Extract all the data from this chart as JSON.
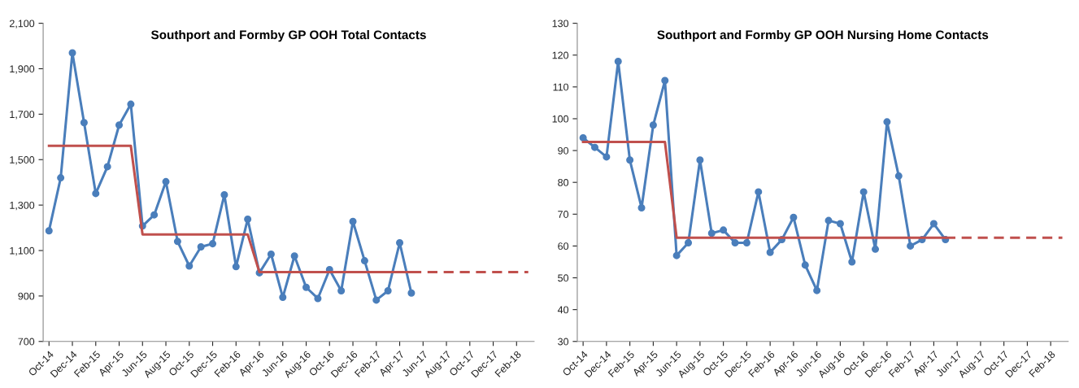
{
  "chart_data": [
    {
      "type": "line",
      "title": "Southport and Formby GP OOH Total Contacts",
      "categories": [
        "Oct-14",
        null,
        "Dec-14",
        null,
        "Feb-15",
        null,
        "Apr-15",
        null,
        "Jun-15",
        null,
        "Aug-15",
        null,
        "Oct-15",
        null,
        "Dec-15",
        null,
        "Feb-16",
        null,
        "Apr-16",
        null,
        "Jun-16",
        null,
        "Aug-16",
        null,
        "Oct-16",
        null,
        "Dec-16",
        null,
        "Feb-17",
        null,
        "Apr-17",
        null,
        "Jun-17",
        null,
        "Aug-17",
        null,
        "Oct-17",
        null,
        "Dec-17",
        null,
        "Feb-18",
        null
      ],
      "series": [
        {
          "color": "#4a7ebb",
          "marker": "circle",
          "line_style": "solid",
          "values": [
            1187,
            1420,
            1970,
            1663,
            1351,
            1469,
            1652,
            1744,
            1208,
            1257,
            1403,
            1140,
            1032,
            1116,
            1130,
            1345,
            1029,
            1238,
            1002,
            1084,
            894,
            1076,
            938,
            889,
            1016,
            923,
            1228,
            1055,
            882,
            923,
            1134,
            913,
            null,
            null,
            null,
            null,
            null,
            null,
            null,
            null,
            null,
            null
          ]
        },
        {
          "color": "#c0504d",
          "marker": "none",
          "line_style": "solid",
          "values": [
            1561,
            1561,
            1561,
            1561,
            1561,
            1561,
            1561,
            1561,
            1171,
            1171,
            1171,
            1171,
            1171,
            1171,
            1171,
            1171,
            1171,
            1171,
            1005,
            1005,
            1005,
            1005,
            1005,
            1005,
            1005,
            1005,
            1005,
            1005,
            1005,
            1005,
            1005,
            1005,
            null,
            null,
            null,
            null,
            null,
            null,
            null,
            null,
            null,
            null
          ]
        },
        {
          "color": "#c0504d",
          "marker": "none",
          "line_style": "dashed",
          "values": [
            null,
            null,
            null,
            null,
            null,
            null,
            null,
            null,
            null,
            null,
            null,
            null,
            null,
            null,
            null,
            null,
            null,
            null,
            null,
            null,
            null,
            null,
            null,
            null,
            null,
            null,
            null,
            null,
            null,
            null,
            null,
            1005,
            1005,
            1005,
            1005,
            1005,
            1005,
            1005,
            1005,
            1005,
            1005,
            1005
          ]
        }
      ],
      "ylim": [
        700,
        2100
      ],
      "yticks": [
        {
          "value": 700,
          "label": "700"
        },
        {
          "value": 900,
          "label": "900"
        },
        {
          "value": 1100,
          "label": "1,100"
        },
        {
          "value": 1300,
          "label": "1,300"
        },
        {
          "value": 1500,
          "label": "1,500"
        },
        {
          "value": 1700,
          "label": "1,700"
        },
        {
          "value": 1900,
          "label": "1,900"
        },
        {
          "value": 2100,
          "label": "2,100"
        }
      ],
      "grid": false,
      "legend": false
    },
    {
      "type": "line",
      "title": "Southport and Formby GP OOH Nursing Home Contacts",
      "categories": [
        "Oct-14",
        null,
        "Dec-14",
        null,
        "Feb-15",
        null,
        "Apr-15",
        null,
        "Jun-15",
        null,
        "Aug-15",
        null,
        "Oct-15",
        null,
        "Dec-15",
        null,
        "Feb-16",
        null,
        "Apr-16",
        null,
        "Jun-16",
        null,
        "Aug-16",
        null,
        "Oct-16",
        null,
        "Dec-16",
        null,
        "Feb-17",
        null,
        "Apr-17",
        null,
        "Jun-17",
        null,
        "Aug-17",
        null,
        "Oct-17",
        null,
        "Dec-17",
        null,
        "Feb-18",
        null
      ],
      "series": [
        {
          "color": "#4a7ebb",
          "marker": "circle",
          "line_style": "solid",
          "values": [
            94,
            91,
            88,
            118,
            87,
            72,
            98,
            112,
            57,
            61,
            87,
            64,
            65,
            61,
            61,
            77,
            58,
            62,
            69,
            54,
            46,
            68,
            67,
            55,
            77,
            59,
            99,
            82,
            60,
            62,
            67,
            62,
            null,
            null,
            null,
            null,
            null,
            null,
            null,
            null,
            null,
            null
          ]
        },
        {
          "color": "#c0504d",
          "marker": "none",
          "line_style": "solid",
          "values": [
            92.7,
            92.7,
            92.7,
            92.7,
            92.7,
            92.7,
            92.7,
            92.7,
            62.6,
            62.6,
            62.6,
            62.6,
            62.6,
            62.6,
            62.6,
            62.6,
            62.6,
            62.6,
            62.6,
            62.6,
            62.6,
            62.6,
            62.6,
            62.6,
            62.6,
            62.6,
            62.6,
            62.6,
            62.6,
            62.6,
            62.6,
            62.6,
            null,
            null,
            null,
            null,
            null,
            null,
            null,
            null,
            null,
            null
          ]
        },
        {
          "color": "#c0504d",
          "marker": "none",
          "line_style": "dashed",
          "values": [
            null,
            null,
            null,
            null,
            null,
            null,
            null,
            null,
            null,
            null,
            null,
            null,
            null,
            null,
            null,
            null,
            null,
            null,
            null,
            null,
            null,
            null,
            null,
            null,
            null,
            null,
            null,
            null,
            null,
            null,
            null,
            62.6,
            62.6,
            62.6,
            62.6,
            62.6,
            62.6,
            62.6,
            62.6,
            62.6,
            62.6,
            62.6
          ]
        }
      ],
      "ylim": [
        30,
        130
      ],
      "yticks": [
        30,
        40,
        50,
        60,
        70,
        80,
        90,
        100,
        110,
        120,
        130
      ],
      "grid": false,
      "legend": false
    }
  ]
}
